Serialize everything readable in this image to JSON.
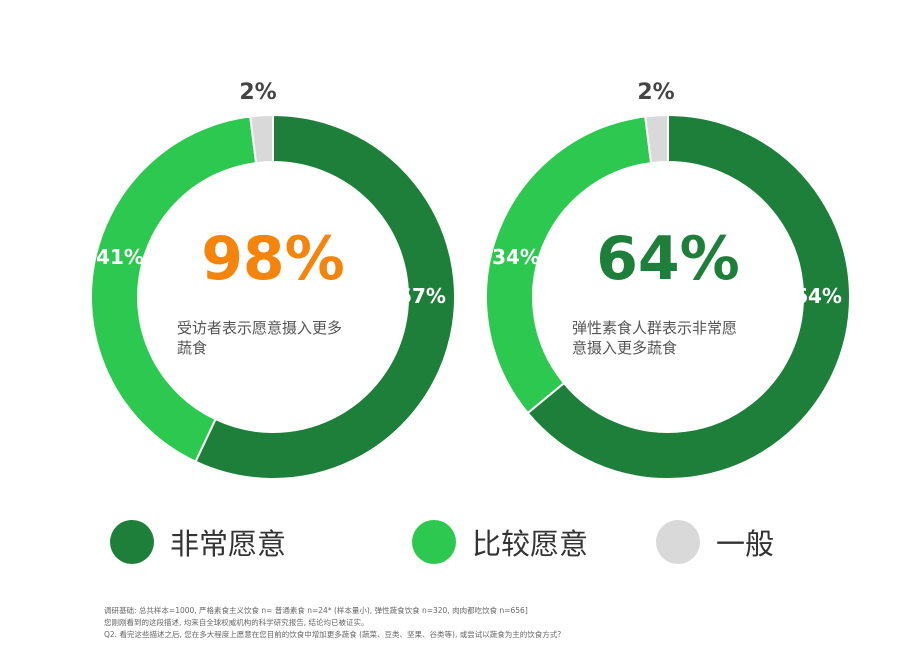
{
  "colors": {
    "very_willing": "#1e7f3a",
    "fairly_willing": "#2cc84f",
    "neutral": "#d9d9d9",
    "orange_highlight": "#f5840c",
    "green_highlight": "#1e7f3a"
  },
  "chart_data": [
    {
      "type": "pie",
      "variant": "donut",
      "categories": [
        "非常愿意",
        "比较愿意",
        "一般"
      ],
      "values": [
        57,
        41,
        2
      ],
      "slice_labels": [
        "57%",
        "41%",
        "2%"
      ],
      "center_value": "98%",
      "center_caption": [
        "受访者表示愿意摄入更多",
        "蔬食"
      ]
    },
    {
      "type": "pie",
      "variant": "donut",
      "categories": [
        "非常愿意",
        "比较愿意",
        "一般"
      ],
      "values": [
        64,
        34,
        2
      ],
      "slice_labels": [
        "64%",
        "34%",
        "2%"
      ],
      "center_value": "64%",
      "center_caption": [
        "弹性素食人群表示非常愿",
        "意摄入更多蔬食"
      ]
    }
  ],
  "legend": [
    {
      "label": "非常愿意",
      "color": "#1e7f3a"
    },
    {
      "label": "比较愿意",
      "color": "#2cc84f"
    },
    {
      "label": "一般",
      "color": "#d9d9d9"
    }
  ],
  "footnote": {
    "line1": "调研基础: 总共样本=1000, 严格素食主义饮食 n= 普通素食 n=24* (样本量小), 弹性蔬食饮食 n=320, 肉肉都吃饮食 n=656]",
    "line2": "您刚刚看到的这段描述, 均来自全球权威机构的科学研究报告, 结论均已被证实。",
    "line3": "Q2. 看完这些描述之后, 您在多大程度上愿意在您目前的饮食中增加更多蔬食 (蔬菜、豆类、坚果、谷类等), 或尝试以蔬食为主的饮食方式?"
  }
}
